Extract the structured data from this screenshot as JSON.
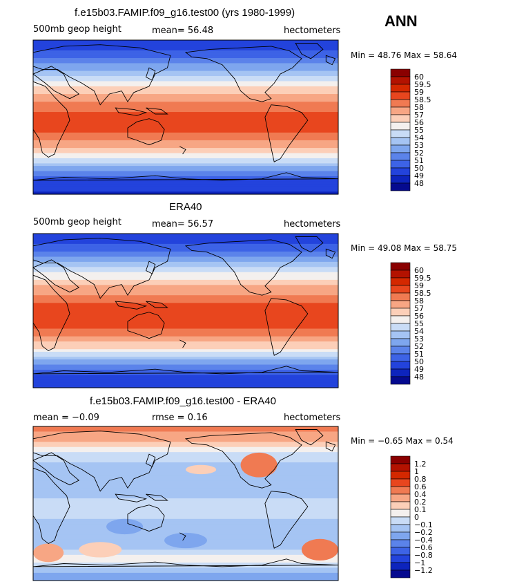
{
  "season": "ANN",
  "chart_data": [
    {
      "type": "heatmap",
      "title": "f.e15b03.FAMIP.f09_g16.test00 (yrs 1980-1999)",
      "left_label": "500mb geop height",
      "center_label": "mean=  56.48",
      "right_label": "hectometers",
      "minmax": "Min =  48.76 Max =  58.64",
      "colorbar": {
        "labels": [
          "60",
          "59.5",
          "59",
          "58.5",
          "58",
          "57",
          "56",
          "55",
          "54",
          "53",
          "52",
          "51",
          "50",
          "49",
          "48"
        ],
        "colors": [
          "#8a0000",
          "#b31200",
          "#d42800",
          "#e8461e",
          "#f07a52",
          "#f7a684",
          "#fccfb8",
          "#f4f0ee",
          "#c9dcf6",
          "#a5c4f3",
          "#7ea6ee",
          "#5b83ea",
          "#3d63e6",
          "#2343dc",
          "#0d24bd",
          "#050a8f"
        ]
      },
      "zonal_profile": [
        49.0,
        50.0,
        51.5,
        53.3,
        55.2,
        56.9,
        58.0,
        58.5,
        58.6,
        58.5,
        57.8,
        56.3,
        54.0,
        51.5,
        49.3,
        48.9
      ]
    },
    {
      "type": "heatmap",
      "title": "ERA40",
      "left_label": "500mb geop height",
      "center_label": "mean=  56.57",
      "right_label": "hectometers",
      "minmax": "Min =  49.08 Max =  58.75",
      "colorbar": {
        "labels": [
          "60",
          "59.5",
          "59",
          "58.5",
          "58",
          "57",
          "56",
          "55",
          "54",
          "53",
          "52",
          "51",
          "50",
          "49",
          "48"
        ],
        "colors": [
          "#8a0000",
          "#b31200",
          "#d42800",
          "#e8461e",
          "#f07a52",
          "#f7a684",
          "#fccfb8",
          "#f4f0ee",
          "#c9dcf6",
          "#a5c4f3",
          "#7ea6ee",
          "#5b83ea",
          "#3d63e6",
          "#2343dc",
          "#0d24bd",
          "#050a8f"
        ]
      },
      "zonal_profile": [
        49.3,
        50.2,
        51.7,
        53.5,
        55.4,
        57.0,
        58.1,
        58.6,
        58.7,
        58.6,
        58.0,
        56.5,
        54.1,
        51.6,
        49.5,
        49.2
      ]
    },
    {
      "type": "heatmap",
      "title": "f.e15b03.FAMIP.f09_g16.test00 - ERA40",
      "left_label": "mean =  −0.09",
      "center_label": "rmse =   0.16",
      "right_label": "hectometers",
      "minmax": "Min =  −0.65 Max =   0.54",
      "colorbar": {
        "labels": [
          "1.2",
          "1",
          "0.8",
          "0.6",
          "0.4",
          "0.2",
          "0.1",
          "0",
          "−0.1",
          "−0.2",
          "−0.4",
          "−0.6",
          "−0.8",
          "−1",
          "−1.2"
        ],
        "colors": [
          "#8a0000",
          "#b31200",
          "#d42800",
          "#e8461e",
          "#f07a52",
          "#f7a684",
          "#fccfb8",
          "#f4f0ee",
          "#c9dcf6",
          "#a5c4f3",
          "#7ea6ee",
          "#5b83ea",
          "#3d63e6",
          "#2343dc",
          "#0d24bd",
          "#050a8f"
        ]
      },
      "zonal_profile": [
        0.45,
        0.3,
        0.05,
        -0.05,
        -0.15,
        -0.1,
        -0.12,
        -0.1,
        -0.05,
        -0.1,
        -0.15,
        -0.2,
        -0.1,
        0.05,
        -0.12,
        -0.3
      ]
    }
  ]
}
